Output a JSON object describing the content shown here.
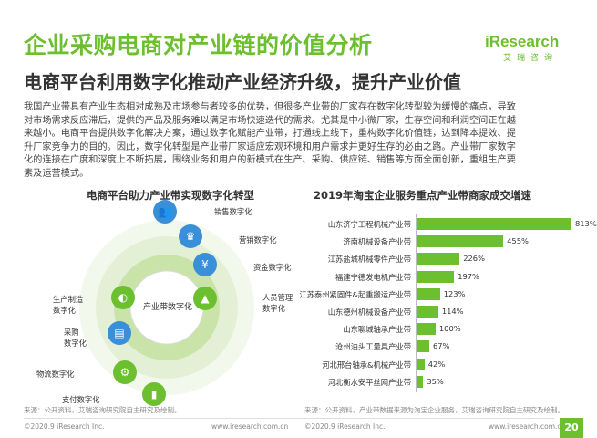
{
  "title": "企业采购电商对产业链的价值分析",
  "logo": {
    "main": "iResearch",
    "sub": "艾瑞咨询"
  },
  "subtitle": "电商平台利用数字化推动产业经济升级，提升产业价值",
  "body_lines": [
    "我国产业带具有产业生态相对成熟及市场参与者较多的优势，但很多产业带的厂家存在数字化转型较为缓慢的痛点，导致",
    "对市场需求反应滞后，提供的产品及服务难以满足市场快速迭代的需求。尤其是中小微厂家，生存空间和利润空间正在越",
    "来越小。电商平台提供数字化解决方案，通过数字化赋能产业带，打通线上线下，重构数字化价值链，达到降本提效、提",
    "升厂家竞争力的目的。因此，数字化转型是产业带厂家适应宏观环境和用户需求并更好生存的必由之路。产业带厂家数字",
    "化的连接在广度和深度上不断拓展，围绕业务和用户的新模式在生产、采购、供应链、销售等方面全面创新，重组生产要",
    "素及运营模式。"
  ],
  "left": {
    "title": "电商平台助力产业带实现数字化转型",
    "center_label": "产业带数字化",
    "labels": [
      "销售数字化",
      "营销数字化",
      "资金数字化",
      "人员管理\n数字化",
      "生产制造\n数字化",
      "采购\n数字化",
      "物流数字化",
      "支付数字化"
    ],
    "icons": [
      "people-icon",
      "crown-icon",
      "yen-icon",
      "hat-icon",
      "palette-icon",
      "document-icon",
      "forklift-icon",
      "chart-icon"
    ],
    "source": "来源：公开资料，艾瑞咨询研究院自主研究及绘制。"
  },
  "chart_data": {
    "type": "bar",
    "title": "2019年淘宝企业服务重点产业带商家成交增速",
    "categories": [
      "山东济宁工程机械产业带",
      "济南机械设备产业带",
      "江苏盐城机械零件产业带",
      "福建宁德发电机产业带",
      "江苏泰州紧固件&起重搬运产业带",
      "山东德州机械设备产业带",
      "山东聊城轴承产业带",
      "沧州泊头工量具产业带",
      "河北邢台轴承&机械产业带",
      "河北衡水安平丝网产业带"
    ],
    "values": [
      813,
      455,
      226,
      197,
      123,
      114,
      100,
      67,
      42,
      35
    ],
    "value_labels": [
      "813%",
      "455%",
      "226%",
      "197%",
      "123%",
      "114%",
      "100%",
      "67%",
      "42%",
      "35%"
    ],
    "bar_color": "#6cbf2e",
    "source": "来源：公开资料，产业带数据来源为淘宝企业服务，艾瑞咨询研究院自主研究及绘制。"
  },
  "footer": {
    "left": "©2020.9 iResearch Inc.",
    "right": "www.iresearch.com.cn",
    "page": "20"
  }
}
